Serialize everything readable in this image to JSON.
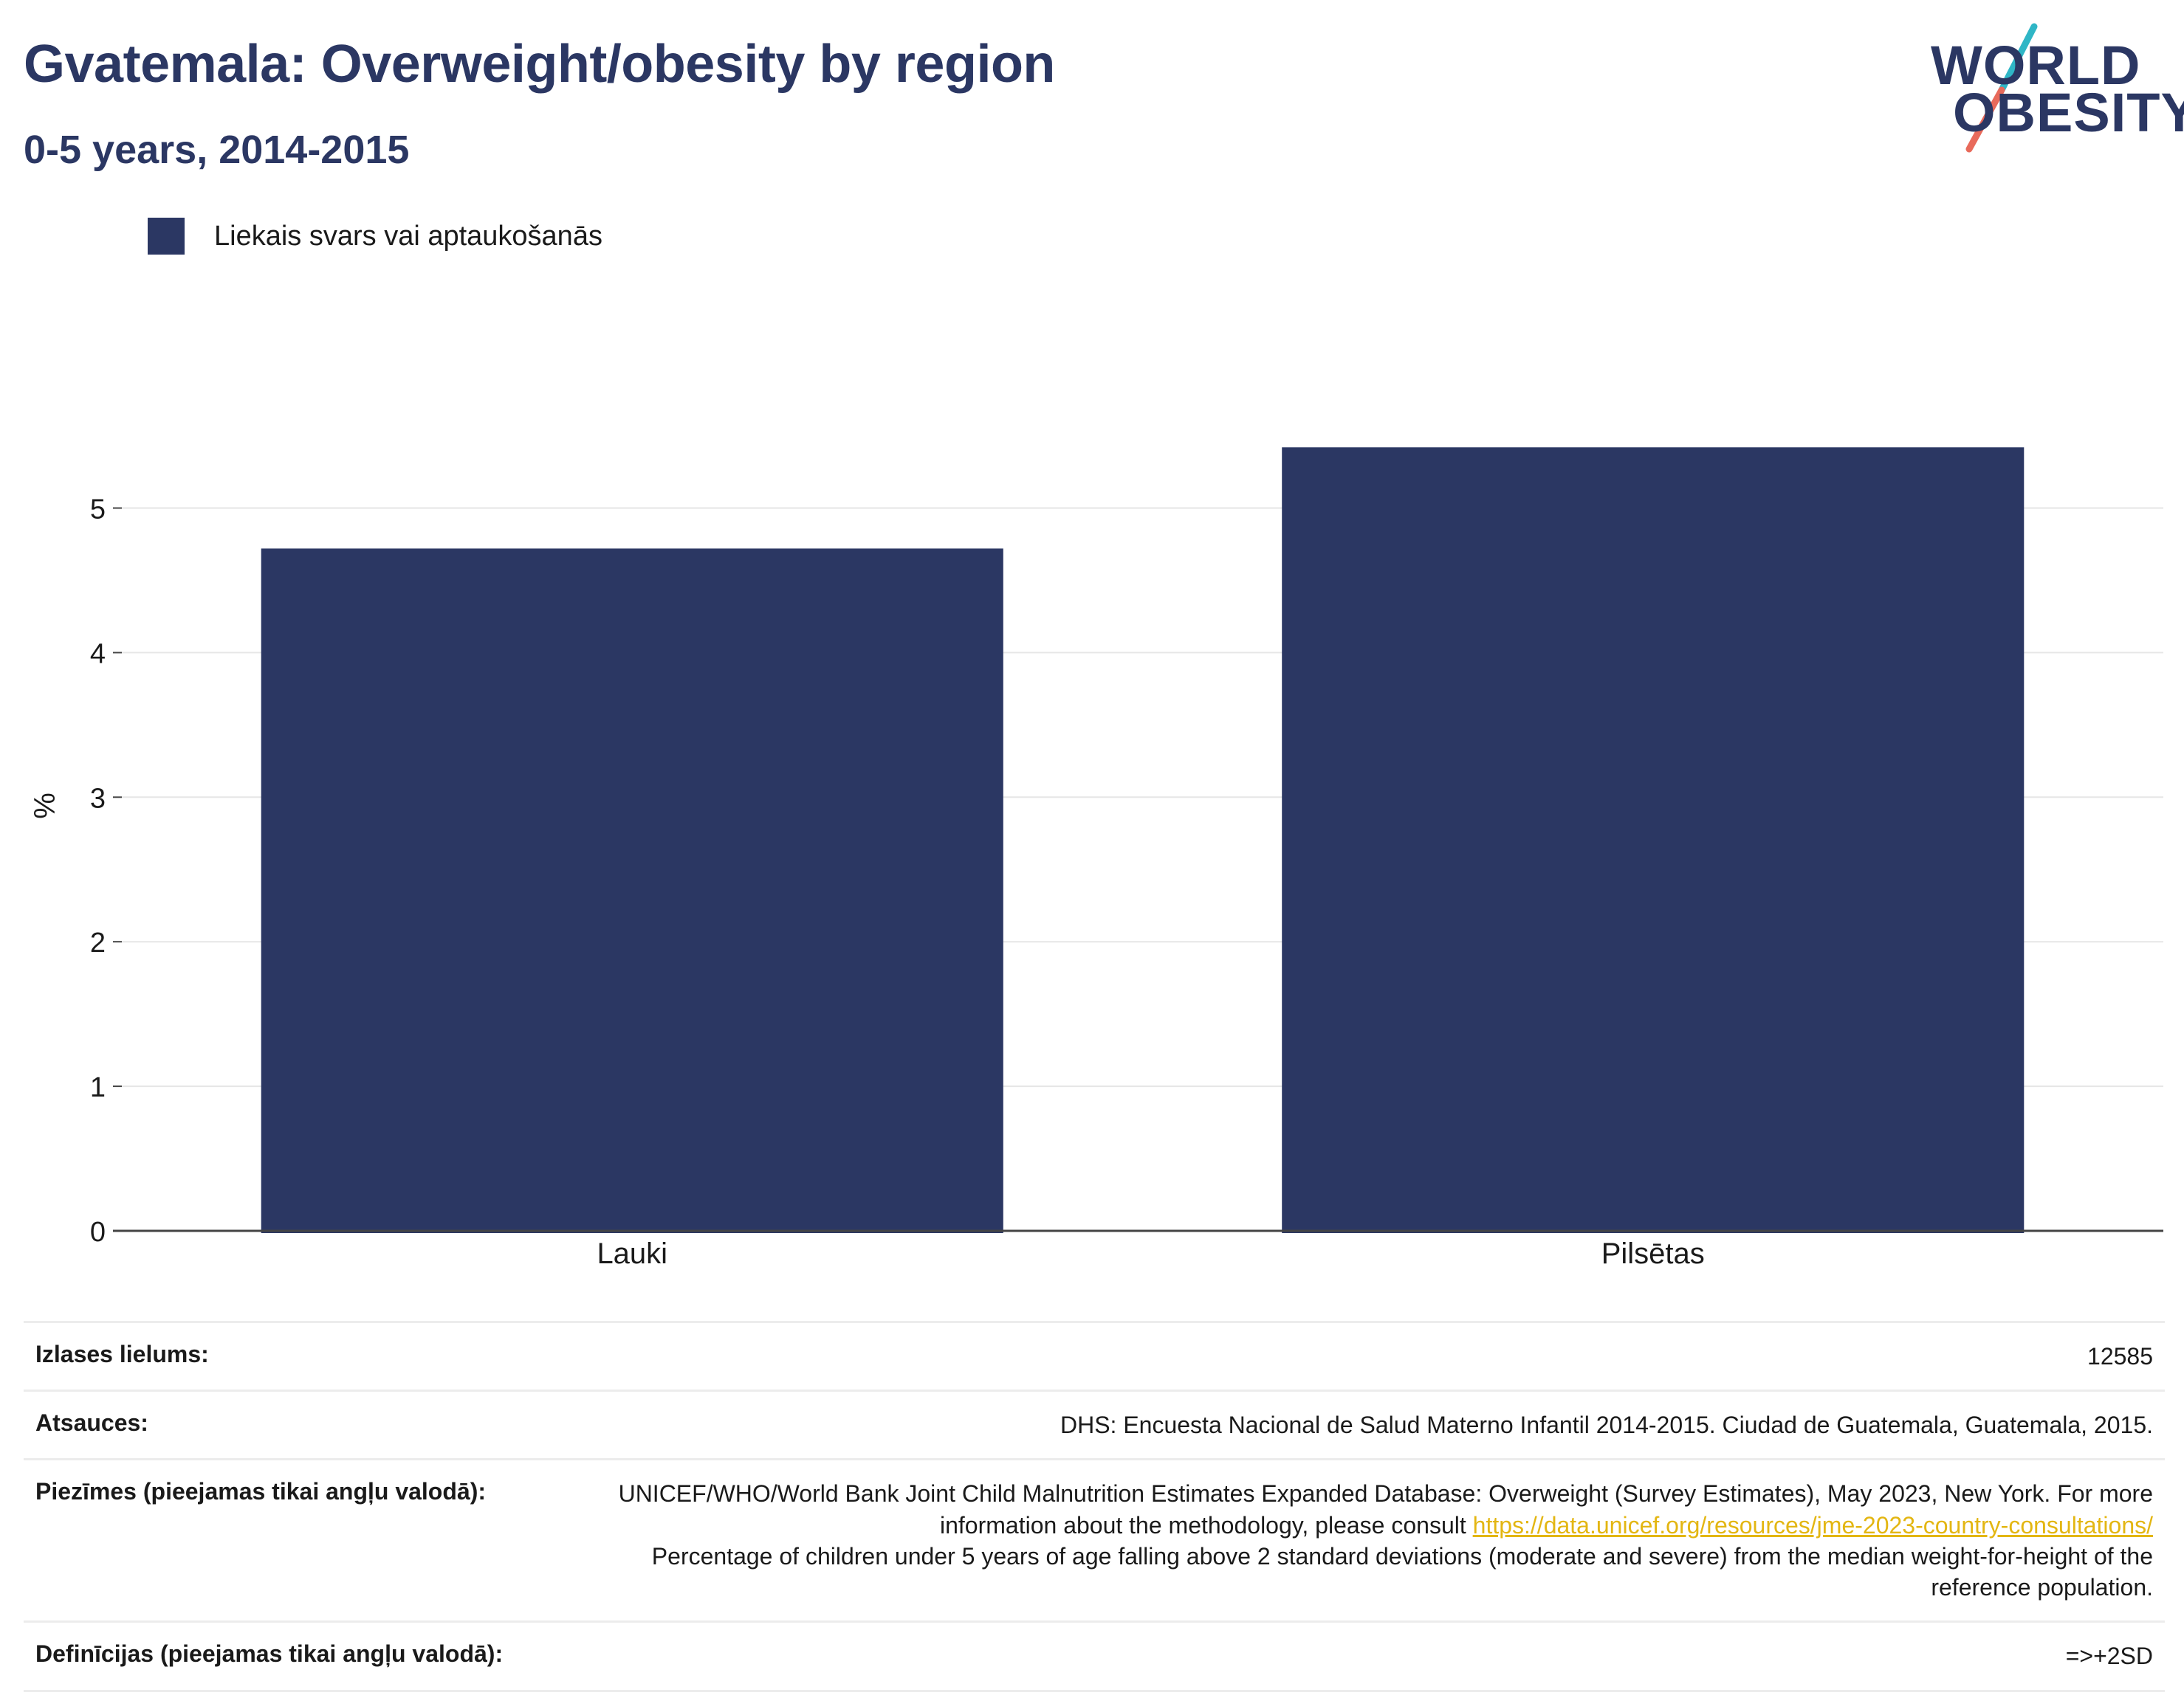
{
  "header": {
    "title": "Gvatemala: Overweight/obesity by region",
    "subtitle": "0-5 years, 2014-2015"
  },
  "logo": {
    "line1": "WORLD",
    "line2": "OBESITY"
  },
  "colors": {
    "bar": "#2b3763",
    "title": "#2b3763",
    "link": "#e3b612",
    "slash_top": "#2fb6c6",
    "slash_bottom": "#e86a5b"
  },
  "chart_data": {
    "type": "bar",
    "categories": [
      "Lauki",
      "Pilsētas"
    ],
    "series": [
      {
        "name": "Liekais svars vai aptaukošanās",
        "values": [
          4.72,
          5.42
        ]
      }
    ],
    "ylabel": "%",
    "ylim": [
      0,
      5.85
    ],
    "yticks": [
      0,
      1,
      2,
      3,
      4,
      5
    ],
    "grid": true,
    "legend": "top-left"
  },
  "info": {
    "sample_label": "Izlases lielums:",
    "sample_value": "12585",
    "refs_label": "Atsauces:",
    "refs_value": "DHS: Encuesta Nacional de Salud Materno Infantil 2014-2015. Ciudad de Guatemala, Guatemala, 2015.",
    "notes_label": "Piezīmes (pieejamas tikai angļu valodā):",
    "notes_text1": "UNICEF/WHO/World Bank Joint Child Malnutrition Estimates Expanded Database: Overweight (Survey Estimates), May 2023, New York. For more information about the methodology, please consult ",
    "notes_link": "https://data.unicef.org/resources/jme-2023-country-consultations/",
    "notes_text2": "Percentage of children under 5 years of age falling above 2 standard deviations (moderate and severe) from the median weight-for-height of the reference population.",
    "defs_label": "Definīcijas (pieejamas tikai angļu valodā):",
    "defs_value": "=>+2SD"
  }
}
